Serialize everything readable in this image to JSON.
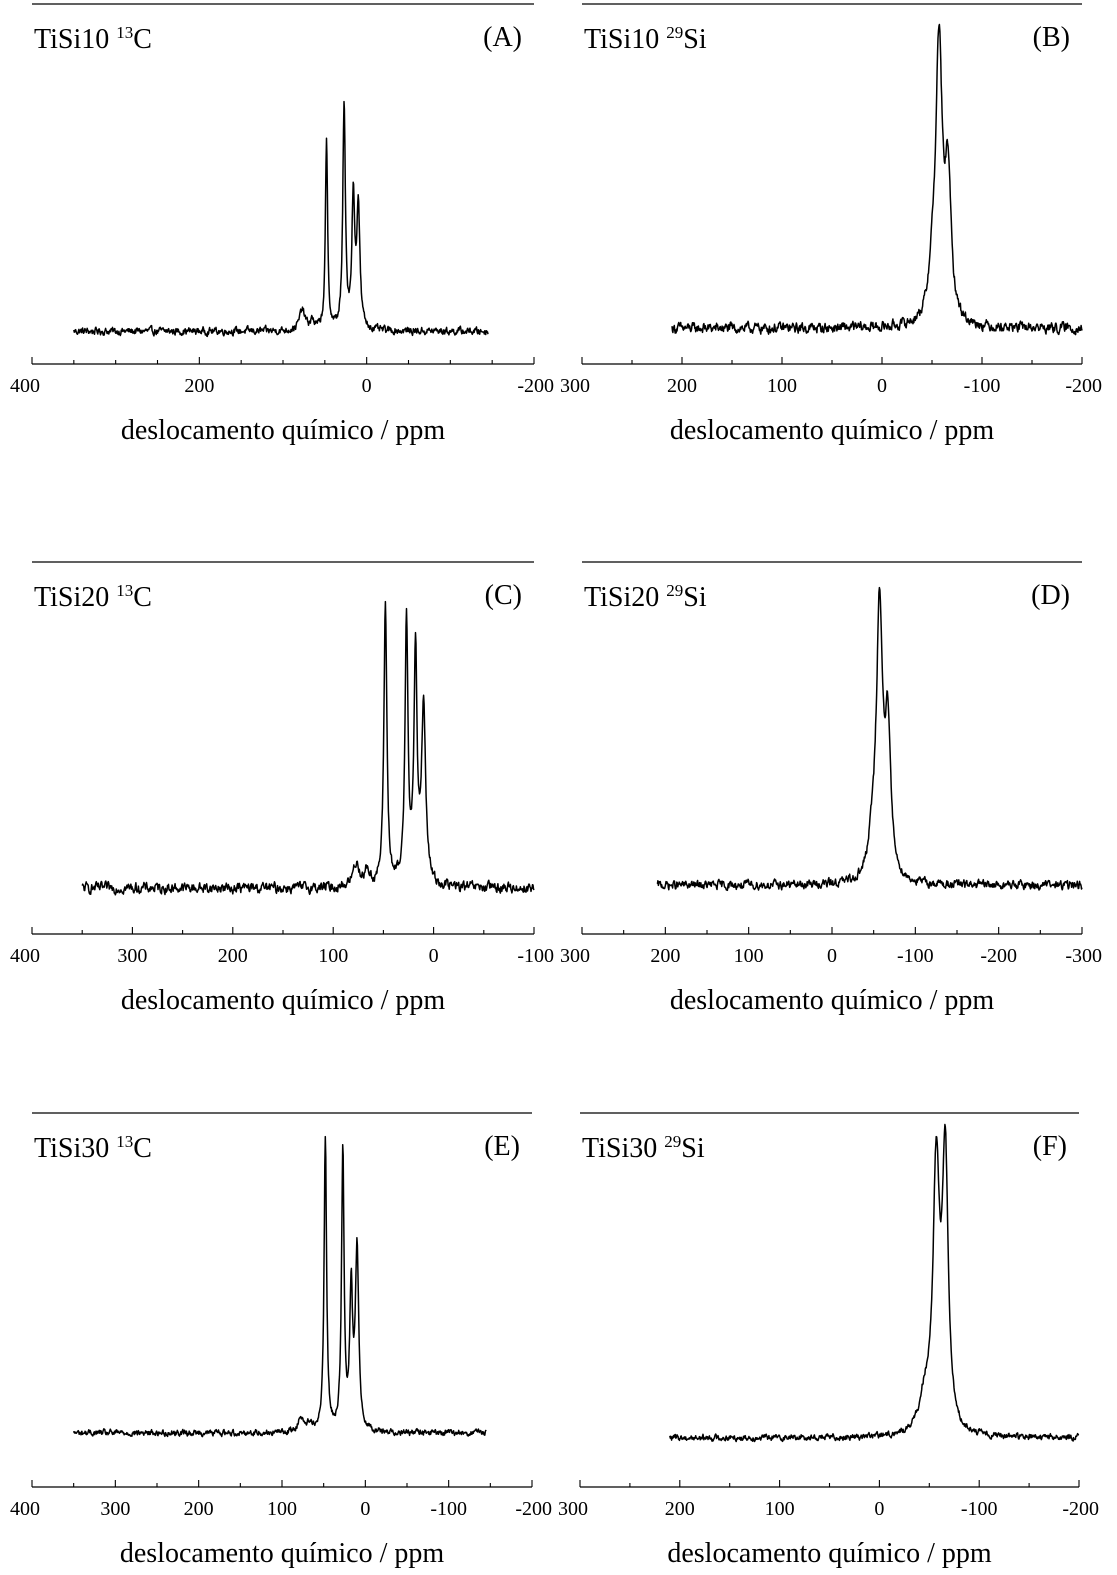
{
  "figure": {
    "panels_label": "NMR spectra panels"
  },
  "chart_data": [
    {
      "id": "A",
      "type": "line",
      "panel_label": "(A)",
      "sample": "TiSi10",
      "isotope_mass": "13",
      "element": "C",
      "xlabel": "deslocamento químico / ppm",
      "ylabel": "",
      "xlim": [
        400,
        -200
      ],
      "xticks": [
        400,
        200,
        0,
        -200
      ],
      "x_minor_step": 50,
      "y_axis_shown": false,
      "data_range": [
        350,
        -145
      ],
      "series": [
        {
          "baseline": 0.03,
          "noise": 0.01,
          "peaks": [
            {
              "x": 77,
              "h": 0.07,
              "w": 4
            },
            {
              "x": 65,
              "h": 0.03,
              "w": 3
            },
            {
              "x": 48,
              "h": 0.64,
              "w": 1.6
            },
            {
              "x": 27,
              "h": 0.77,
              "w": 1.8
            },
            {
              "x": 16,
              "h": 0.44,
              "w": 2
            },
            {
              "x": 10,
              "h": 0.42,
              "w": 2.2
            }
          ]
        }
      ]
    },
    {
      "id": "B",
      "type": "line",
      "panel_label": "(B)",
      "sample": "TiSi10",
      "isotope_mass": "29",
      "element": "Si",
      "xlabel": "deslocamento químico / ppm",
      "ylabel": "",
      "xlim": [
        300,
        -200
      ],
      "xticks": [
        300,
        200,
        100,
        0,
        -100,
        -200
      ],
      "x_minor_step": 50,
      "y_axis_shown": false,
      "data_range": [
        210,
        -200
      ],
      "series": [
        {
          "baseline": 0.03,
          "noise": 0.014,
          "peaks": [
            {
              "x": -57,
              "h": 0.96,
              "w": 4
            },
            {
              "x": -66,
              "h": 0.48,
              "w": 3.5
            },
            {
              "x": -50,
              "h": 0.12,
              "w": 4
            }
          ]
        }
      ]
    },
    {
      "id": "C",
      "type": "line",
      "panel_label": "(C)",
      "sample": "TiSi20",
      "isotope_mass": "13",
      "element": "C",
      "xlabel": "deslocamento químico / ppm",
      "ylabel": "",
      "xlim": [
        400,
        -100
      ],
      "xticks": [
        400,
        300,
        200,
        100,
        0,
        -100
      ],
      "x_minor_step": 50,
      "y_axis_shown": false,
      "data_range": [
        350,
        -100
      ],
      "series": [
        {
          "baseline": 0.03,
          "noise": 0.014,
          "peaks": [
            {
              "x": 77,
              "h": 0.08,
              "w": 4
            },
            {
              "x": 66,
              "h": 0.05,
              "w": 3
            },
            {
              "x": 48,
              "h": 0.95,
              "w": 1.8
            },
            {
              "x": 27,
              "h": 0.9,
              "w": 1.8
            },
            {
              "x": 18,
              "h": 0.78,
              "w": 1.8
            },
            {
              "x": 10,
              "h": 0.6,
              "w": 2.4
            }
          ]
        }
      ]
    },
    {
      "id": "D",
      "type": "line",
      "panel_label": "(D)",
      "sample": "TiSi20",
      "isotope_mass": "29",
      "element": "Si",
      "xlabel": "deslocamento químico / ppm",
      "ylabel": "",
      "xlim": [
        300,
        -300
      ],
      "xticks": [
        300,
        200,
        100,
        0,
        -100,
        -200,
        -300
      ],
      "x_minor_step": 50,
      "y_axis_shown": false,
      "data_range": [
        210,
        -300
      ],
      "series": [
        {
          "baseline": 0.03,
          "noise": 0.012,
          "peaks": [
            {
              "x": -57,
              "h": 0.94,
              "w": 4.5
            },
            {
              "x": -67,
              "h": 0.5,
              "w": 4
            },
            {
              "x": -48,
              "h": 0.1,
              "w": 5
            }
          ]
        }
      ]
    },
    {
      "id": "E",
      "type": "line",
      "panel_label": "(E)",
      "sample": "TiSi30",
      "isotope_mass": "13",
      "element": "C",
      "xlabel": "deslocamento químico / ppm",
      "ylabel": "",
      "xlim": [
        400,
        -200
      ],
      "xticks": [
        400,
        300,
        200,
        100,
        0,
        -100,
        -200
      ],
      "x_minor_step": 50,
      "y_axis_shown": false,
      "data_range": [
        350,
        -145
      ],
      "series": [
        {
          "baseline": 0.03,
          "noise": 0.008,
          "peaks": [
            {
              "x": 77,
              "h": 0.05,
              "w": 4
            },
            {
              "x": 66,
              "h": 0.03,
              "w": 3
            },
            {
              "x": 48,
              "h": 0.96,
              "w": 1.8
            },
            {
              "x": 27,
              "h": 0.93,
              "w": 1.8
            },
            {
              "x": 17,
              "h": 0.45,
              "w": 2
            },
            {
              "x": 10,
              "h": 0.6,
              "w": 2.4
            }
          ]
        }
      ]
    },
    {
      "id": "F",
      "type": "line",
      "panel_label": "(F)",
      "sample": "TiSi30",
      "isotope_mass": "29",
      "element": "Si",
      "xlabel": "deslocamento químico / ppm",
      "ylabel": "",
      "xlim": [
        300,
        -200
      ],
      "xticks": [
        300,
        200,
        100,
        0,
        -100,
        -200
      ],
      "x_minor_step": 50,
      "y_axis_shown": false,
      "data_range": [
        210,
        -200
      ],
      "series": [
        {
          "baseline": 0.03,
          "noise": 0.008,
          "peaks": [
            {
              "x": -57,
              "h": 0.85,
              "w": 4
            },
            {
              "x": -66,
              "h": 0.88,
              "w": 3.5
            },
            {
              "x": -45,
              "h": 0.1,
              "w": 6
            }
          ]
        }
      ]
    }
  ]
}
